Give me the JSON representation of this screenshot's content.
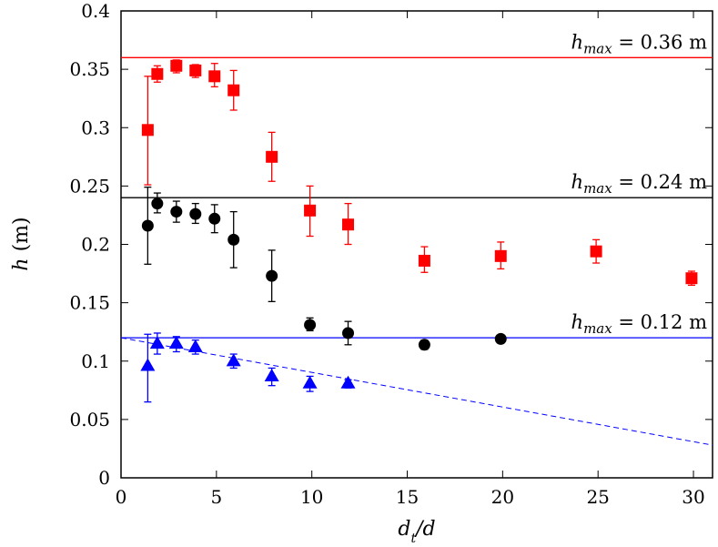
{
  "chart_data": {
    "type": "scatter",
    "xlabel": "d_t/d",
    "ylabel": "h (m)",
    "xlim": [
      0,
      31
    ],
    "ylim": [
      0,
      0.4
    ],
    "xticks": [
      "0",
      "5",
      "10",
      "15",
      "20",
      "25",
      "30"
    ],
    "yticks": [
      "0",
      "0.05",
      "0.1",
      "0.15",
      "0.2",
      "0.25",
      "0.3",
      "0.35",
      "0.4"
    ],
    "grid": false,
    "series": [
      {
        "marker": "square",
        "color": "#ff0000",
        "points": [
          {
            "x": 1.4,
            "y": 0.298,
            "lo": 0.251,
            "hi": 0.344
          },
          {
            "x": 1.9,
            "y": 0.346,
            "lo": 0.339,
            "hi": 0.353
          },
          {
            "x": 2.9,
            "y": 0.353,
            "lo": 0.347,
            "hi": 0.358
          },
          {
            "x": 3.9,
            "y": 0.349,
            "lo": 0.343,
            "hi": 0.354
          },
          {
            "x": 4.9,
            "y": 0.344,
            "lo": 0.335,
            "hi": 0.355
          },
          {
            "x": 5.9,
            "y": 0.332,
            "lo": 0.315,
            "hi": 0.349
          },
          {
            "x": 7.9,
            "y": 0.275,
            "lo": 0.254,
            "hi": 0.296
          },
          {
            "x": 9.9,
            "y": 0.229,
            "lo": 0.207,
            "hi": 0.25
          },
          {
            "x": 11.9,
            "y": 0.217,
            "lo": 0.2,
            "hi": 0.235
          },
          {
            "x": 15.9,
            "y": 0.186,
            "lo": 0.176,
            "hi": 0.198
          },
          {
            "x": 19.9,
            "y": 0.19,
            "lo": 0.179,
            "hi": 0.202
          },
          {
            "x": 24.9,
            "y": 0.194,
            "lo": 0.184,
            "hi": 0.204
          },
          {
            "x": 29.9,
            "y": 0.171,
            "lo": 0.165,
            "hi": 0.177
          }
        ]
      },
      {
        "marker": "circle",
        "color": "#000000",
        "points": [
          {
            "x": 1.4,
            "y": 0.216,
            "lo": 0.183,
            "hi": 0.249
          },
          {
            "x": 1.9,
            "y": 0.235,
            "lo": 0.227,
            "hi": 0.244
          },
          {
            "x": 2.9,
            "y": 0.228,
            "lo": 0.219,
            "hi": 0.237
          },
          {
            "x": 3.9,
            "y": 0.226,
            "lo": 0.218,
            "hi": 0.235
          },
          {
            "x": 4.9,
            "y": 0.222,
            "lo": 0.21,
            "hi": 0.234
          },
          {
            "x": 5.9,
            "y": 0.204,
            "lo": 0.18,
            "hi": 0.228
          },
          {
            "x": 7.9,
            "y": 0.173,
            "lo": 0.151,
            "hi": 0.195
          },
          {
            "x": 9.9,
            "y": 0.131,
            "lo": 0.126,
            "hi": 0.137
          },
          {
            "x": 11.9,
            "y": 0.124,
            "lo": 0.114,
            "hi": 0.134
          },
          {
            "x": 15.9,
            "y": 0.114,
            "lo": 0.11,
            "hi": 0.118
          },
          {
            "x": 19.9,
            "y": 0.119,
            "lo": 0.117,
            "hi": 0.122
          }
        ]
      },
      {
        "marker": "triangle",
        "color": "#0000ff",
        "points": [
          {
            "x": 1.4,
            "y": 0.096,
            "lo": 0.065,
            "hi": 0.123
          },
          {
            "x": 1.9,
            "y": 0.115,
            "lo": 0.106,
            "hi": 0.124
          },
          {
            "x": 2.9,
            "y": 0.115,
            "lo": 0.108,
            "hi": 0.121
          },
          {
            "x": 3.9,
            "y": 0.112,
            "lo": 0.106,
            "hi": 0.118
          },
          {
            "x": 5.9,
            "y": 0.1,
            "lo": 0.094,
            "hi": 0.106
          },
          {
            "x": 7.9,
            "y": 0.087,
            "lo": 0.079,
            "hi": 0.094
          },
          {
            "x": 9.9,
            "y": 0.081,
            "lo": 0.074,
            "hi": 0.087
          },
          {
            "x": 11.9,
            "y": 0.081,
            "lo": 0.077,
            "hi": 0.084
          }
        ]
      }
    ],
    "reference_lines": [
      {
        "y": 0.36,
        "color": "#ff0000",
        "label_var": "h",
        "label_sub": "max",
        "label_value": "= 0.36 m"
      },
      {
        "y": 0.24,
        "color": "#000000",
        "label_var": "h",
        "label_sub": "max",
        "label_value": "= 0.24 m"
      },
      {
        "y": 0.12,
        "color": "#0000ff",
        "label_var": "h",
        "label_sub": "max",
        "label_value": "= 0.12 m"
      }
    ],
    "dashed_line": {
      "color": "#0000ff",
      "from": [
        0,
        0.12
      ],
      "to": [
        31,
        0.028
      ]
    }
  }
}
